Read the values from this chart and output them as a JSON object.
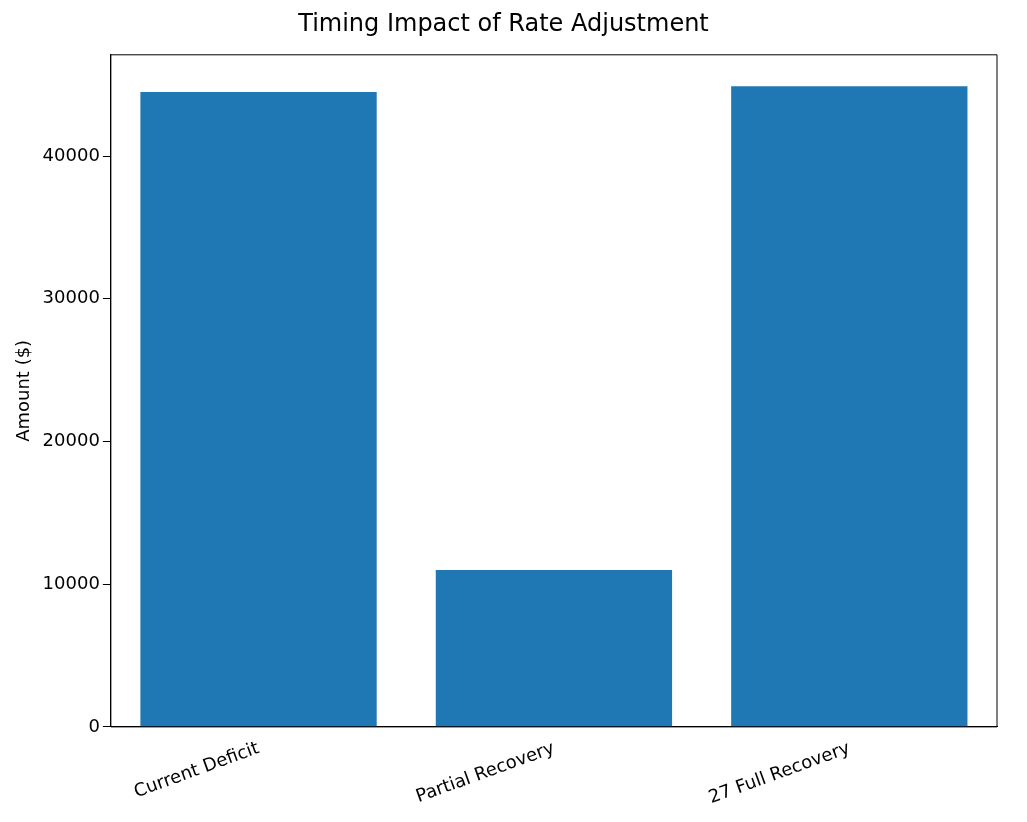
{
  "chart_data": {
    "type": "bar",
    "title": "Timing Impact of Rate Adjustment",
    "ylabel": "Amount ($)",
    "categories": [
      "Current Deficit",
      "Partial Recovery",
      "27 Full Recovery"
    ],
    "values": [
      44500,
      11000,
      44900
    ],
    "color": "#1f77b4",
    "ylim": [
      0,
      47100
    ],
    "yticks": [
      0,
      10000,
      20000,
      30000,
      40000
    ],
    "grid": false,
    "legend": false
  }
}
